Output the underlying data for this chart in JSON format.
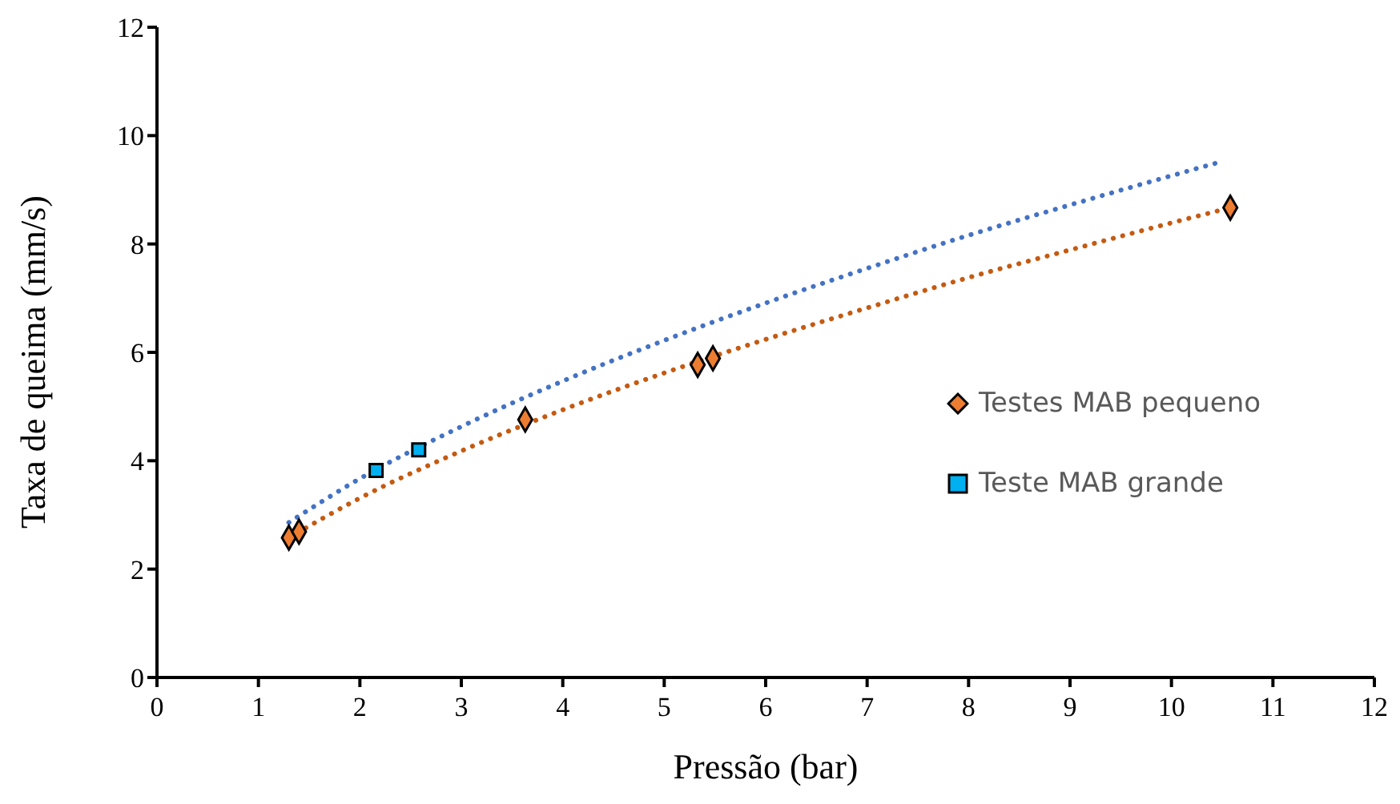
{
  "chart_data": {
    "type": "scatter",
    "xlabel": "Pressão (bar)",
    "ylabel": "Taxa de queima (mm/s)",
    "xlim": [
      0,
      12
    ],
    "xticks": [
      0,
      1,
      2,
      3,
      4,
      5,
      6,
      7,
      8,
      9,
      10,
      11,
      12
    ],
    "ylim": [
      0,
      12
    ],
    "yticks": [
      0,
      2,
      4,
      6,
      8,
      10,
      12
    ],
    "grid": false,
    "legend": "right",
    "series": [
      {
        "type": "line",
        "color": "#c55a11",
        "marker": "none",
        "line_style": "dotted",
        "x": [
          1.3,
          2,
          3,
          4,
          5,
          6,
          7,
          8,
          9,
          10,
          10.58
        ],
        "values": [
          2.58,
          3.31,
          4.18,
          4.94,
          5.62,
          6.24,
          6.82,
          7.38,
          7.89,
          8.39,
          8.67
        ]
      },
      {
        "type": "line",
        "color": "#4472c4",
        "marker": "none",
        "line_style": "dotted",
        "x": [
          1.3,
          2,
          3,
          4,
          5,
          6,
          7,
          8,
          9,
          10,
          10.51
        ],
        "values": [
          2.86,
          3.67,
          4.63,
          5.47,
          6.22,
          6.91,
          7.55,
          8.16,
          8.72,
          9.26,
          9.53
        ]
      },
      {
        "name": "Testes MAB pequeno",
        "color": "#ed7d31",
        "marker": "diamond",
        "x": [
          1.3,
          1.4,
          3.63,
          5.33,
          5.48,
          10.58
        ],
        "values": [
          2.58,
          2.69,
          4.76,
          5.77,
          5.89,
          8.67
        ]
      },
      {
        "name": "Teste MAB grande",
        "color": "#00b0f0",
        "marker": "square",
        "x": [
          2.16,
          2.58
        ],
        "values": [
          3.82,
          4.2
        ]
      }
    ]
  }
}
